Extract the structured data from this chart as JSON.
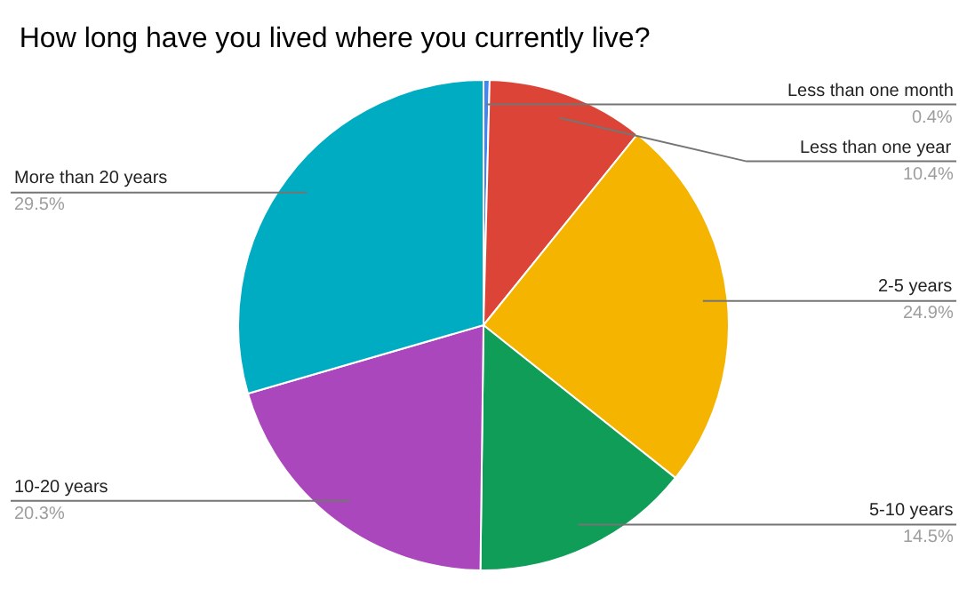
{
  "chart_data": {
    "type": "pie",
    "title": "How long have you lived where you currently live?",
    "categories": [
      "Less than one month",
      "Less than one year",
      "2-5 years",
      "5-10 years",
      "10-20 years",
      "More than 20 years"
    ],
    "values": [
      0.4,
      10.4,
      24.9,
      14.5,
      20.3,
      29.5
    ],
    "value_labels": [
      "0.4%",
      "10.4%",
      "24.9%",
      "14.5%",
      "20.3%",
      "29.5%"
    ],
    "colors": [
      "#4285f4",
      "#db4437",
      "#f4b400",
      "#0f9d58",
      "#ab47bc",
      "#00acc1"
    ],
    "legend": false
  }
}
